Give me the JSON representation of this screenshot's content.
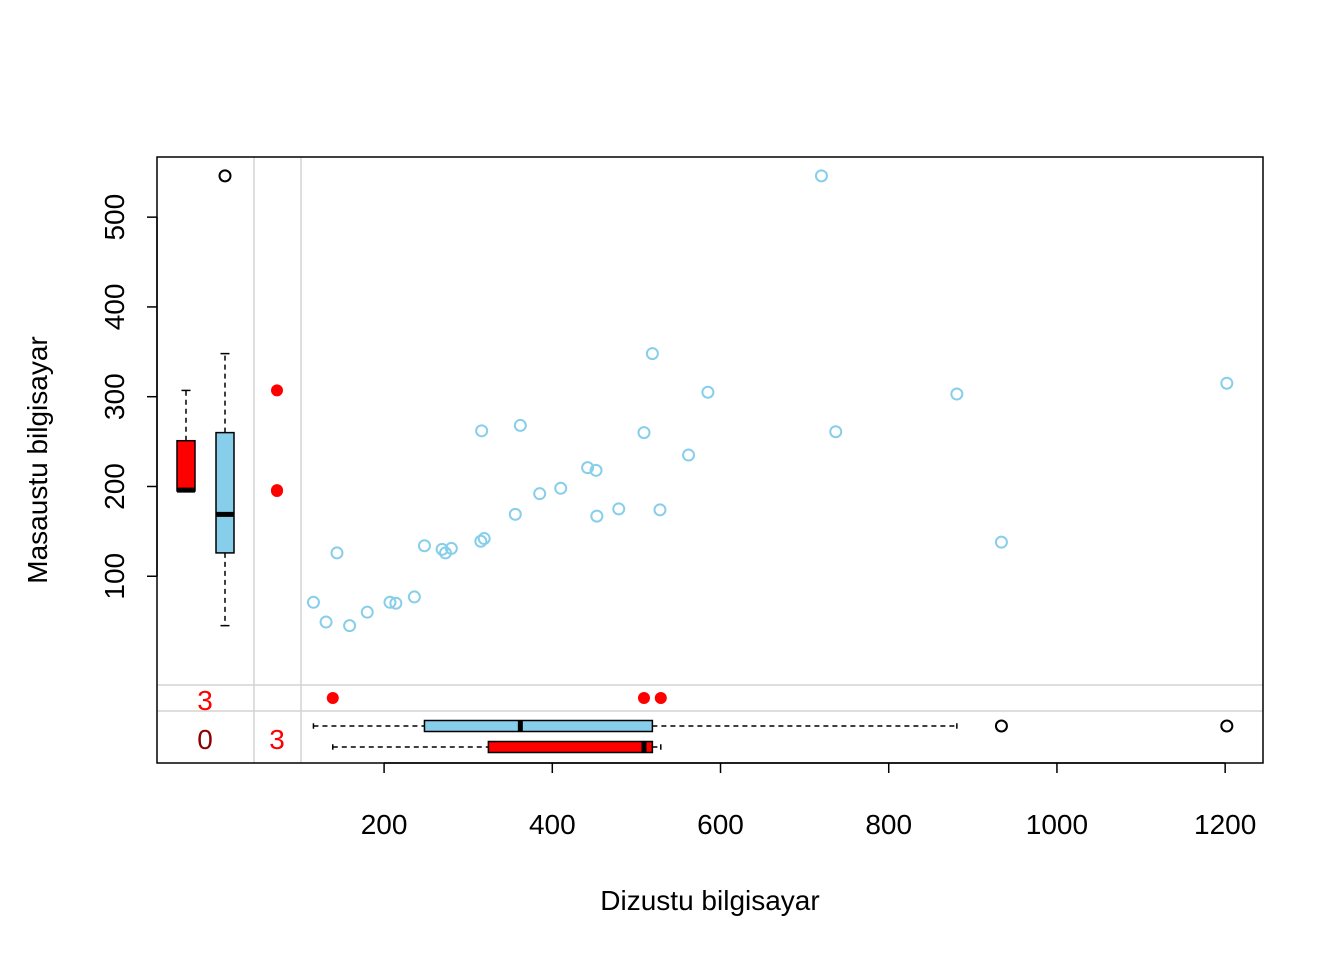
{
  "chart_data": {
    "type": "scatter",
    "title": "",
    "xlabel": "Dizustu bilgisayar",
    "ylabel": "Masaustu bilgisayar",
    "xlim": [
      -70,
      1245
    ],
    "ylim": [
      -108,
      567
    ],
    "x_ticks": [
      200,
      400,
      600,
      800,
      1000,
      1200
    ],
    "y_ticks": [
      100,
      200,
      300,
      400,
      500
    ],
    "grid": false,
    "colors": {
      "observed": "#87ceeb",
      "missing": "#ff0000",
      "outlier": "#000000",
      "divider": "#d3d3d3",
      "count_both_missing": "#8b0000",
      "count_missing": "#ff0000"
    },
    "points": [
      {
        "x": 720,
        "y": 546
      },
      {
        "x": 519,
        "y": 348
      },
      {
        "x": 1202,
        "y": 315
      },
      {
        "x": 585,
        "y": 305
      },
      {
        "x": 881,
        "y": 303
      },
      {
        "x": 362,
        "y": 268
      },
      {
        "x": 316,
        "y": 262
      },
      {
        "x": 737,
        "y": 261
      },
      {
        "x": 509,
        "y": 260
      },
      {
        "x": 562,
        "y": 235
      },
      {
        "x": 442,
        "y": 221
      },
      {
        "x": 452,
        "y": 218
      },
      {
        "x": 410,
        "y": 198
      },
      {
        "x": 385,
        "y": 192
      },
      {
        "x": 479,
        "y": 175
      },
      {
        "x": 528,
        "y": 174
      },
      {
        "x": 356,
        "y": 169
      },
      {
        "x": 453,
        "y": 167
      },
      {
        "x": 319,
        "y": 142
      },
      {
        "x": 315,
        "y": 139
      },
      {
        "x": 934,
        "y": 138
      },
      {
        "x": 248,
        "y": 134
      },
      {
        "x": 280,
        "y": 131
      },
      {
        "x": 269,
        "y": 130
      },
      {
        "x": 144,
        "y": 126
      },
      {
        "x": 273,
        "y": 126
      },
      {
        "x": 236,
        "y": 77
      },
      {
        "x": 116,
        "y": 71
      },
      {
        "x": 207,
        "y": 71
      },
      {
        "x": 214,
        "y": 70
      },
      {
        "x": 180,
        "y": 60
      },
      {
        "x": 131,
        "y": 49
      },
      {
        "x": 159,
        "y": 45
      }
    ],
    "missing_x_points": [
      {
        "y": 307
      },
      {
        "y": 196
      },
      {
        "y": 195
      }
    ],
    "missing_y_points": [
      {
        "x": 139
      },
      {
        "x": 509
      },
      {
        "x": 529
      }
    ],
    "boxplots": {
      "y_observed": {
        "whisker_low": 45,
        "q1": 126,
        "median": 169,
        "q3": 260,
        "whisker_high": 348,
        "outliers": [
          546
        ]
      },
      "y_missing": {
        "whisker_low": 195,
        "q1": 195,
        "median": 196,
        "q3": 251,
        "whisker_high": 307,
        "outliers": []
      },
      "x_observed": {
        "whisker_low": 116,
        "q1": 248,
        "median": 362,
        "q3": 519,
        "whisker_high": 881,
        "outliers": [
          934,
          1202
        ]
      },
      "x_missing": {
        "whisker_low": 139,
        "q1": 324,
        "median": 509,
        "q3": 519,
        "whisker_high": 529,
        "outliers": []
      }
    },
    "missing_counts": {
      "y_missing_count": "3",
      "both_missing_count": "0",
      "x_missing_count": "3"
    }
  }
}
